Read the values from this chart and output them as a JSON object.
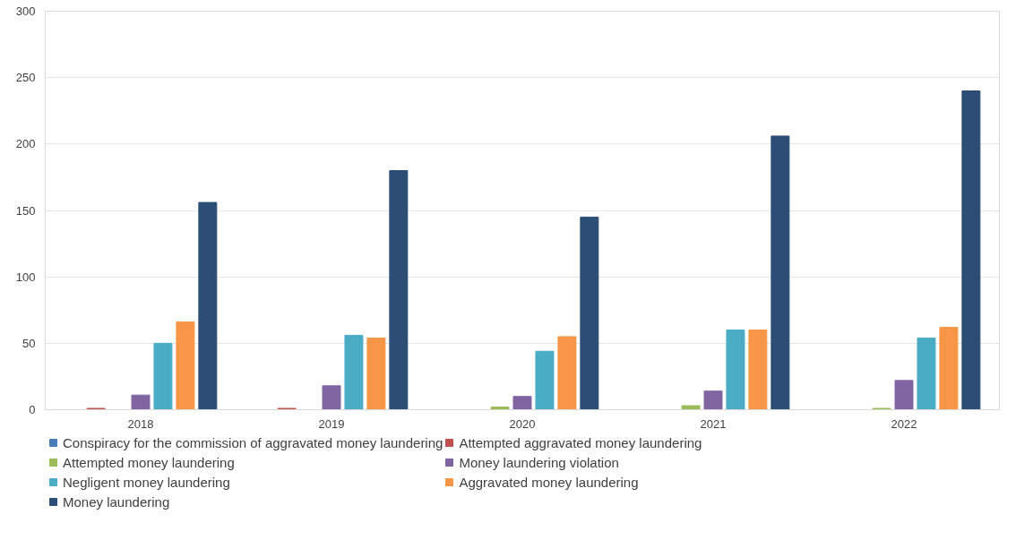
{
  "chart_data": {
    "type": "bar",
    "categories": [
      "2018",
      "2019",
      "2020",
      "2021",
      "2022"
    ],
    "series": [
      {
        "name": "Conspiracy for the commission of aggravated money laundering",
        "color": "#4a7ebb",
        "values": [
          0,
          0,
          0,
          0,
          0
        ]
      },
      {
        "name": "Attempted aggravated money laundering",
        "color": "#c0504d",
        "values": [
          1,
          1,
          0,
          0,
          0
        ]
      },
      {
        "name": "Attempted money laundering",
        "color": "#9bbb59",
        "values": [
          0,
          0,
          2,
          3,
          1
        ]
      },
      {
        "name": "Money laundering violation",
        "color": "#8064a2",
        "values": [
          11,
          18,
          10,
          14,
          22
        ]
      },
      {
        "name": "Negligent money laundering",
        "color": "#4bacc6",
        "values": [
          50,
          56,
          44,
          60,
          54
        ]
      },
      {
        "name": "Aggravated money laundering",
        "color": "#f79646",
        "values": [
          66,
          54,
          55,
          60,
          62
        ]
      },
      {
        "name": "Money laundering",
        "color": "#2c4d75",
        "values": [
          156,
          180,
          145,
          206,
          240
        ]
      }
    ],
    "ylim": [
      0,
      300
    ],
    "yticks": [
      0,
      50,
      100,
      150,
      200,
      250,
      300
    ],
    "grid": "y",
    "legend": "bottom"
  }
}
